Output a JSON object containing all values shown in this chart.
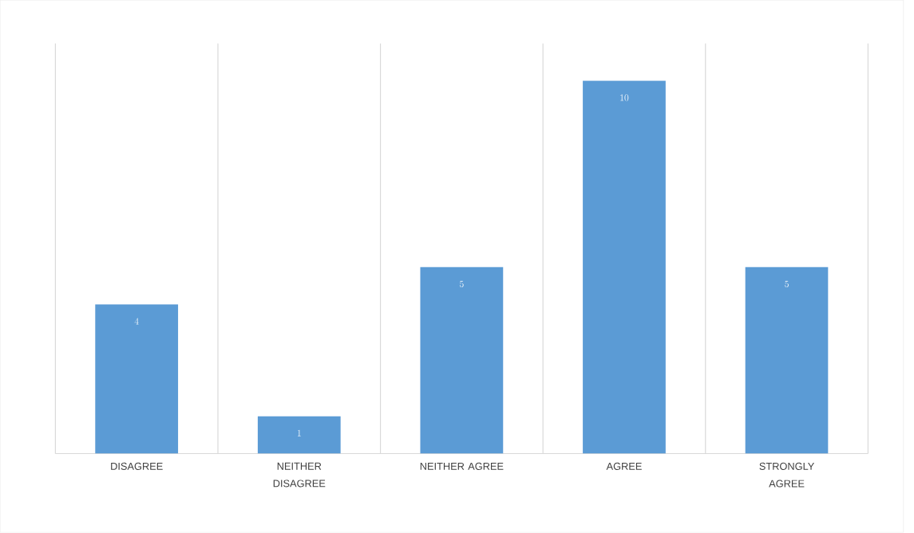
{
  "chart_data": {
    "type": "bar",
    "categories": [
      "DISAGREE",
      "NEITHER DISAGREE",
      "NEITHER AGREE",
      "AGREE",
      "STRONGLY AGREE"
    ],
    "values": [
      4,
      1,
      5,
      10,
      5
    ],
    "color": "#5b9bd5",
    "ylim": [
      0,
      11
    ],
    "data_labels": true,
    "grid": "x"
  }
}
